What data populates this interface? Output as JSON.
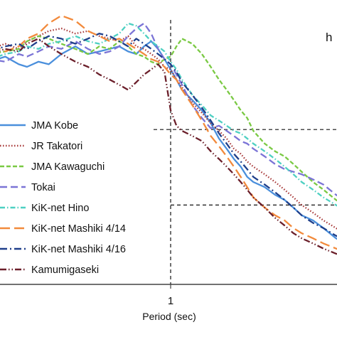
{
  "chart_data": {
    "type": "line",
    "title": "",
    "panel_label": "h",
    "xlabel": "Period (sec)",
    "ylabel": "",
    "x_scale": "log",
    "xlim": [
      0.2,
      5
    ],
    "ylim": [
      0,
      1
    ],
    "x_ticks": [
      {
        "value": 1,
        "label": "1"
      }
    ],
    "reference_lines": [
      {
        "kind": "vertical",
        "x": 1
      },
      {
        "kind": "horizontal",
        "y": 0.605,
        "x_from": 0.2,
        "x_to": 5
      },
      {
        "kind": "horizontal",
        "y": 0.31,
        "x_from": 1,
        "x_to": 5
      }
    ],
    "legend": {
      "placement": "left"
    },
    "series": [
      {
        "name": "JMA Kobe",
        "color": "#4a8fdc",
        "dash": "solid",
        "x": [
          0.2,
          0.22,
          0.25,
          0.28,
          0.3,
          0.33,
          0.36,
          0.4,
          0.45,
          0.5,
          0.55,
          0.6,
          0.65,
          0.7,
          0.75,
          0.8,
          0.85,
          0.9,
          0.95,
          1.0,
          1.05,
          1.1,
          1.2,
          1.3,
          1.4,
          1.5,
          1.6,
          1.7,
          1.8,
          1.9,
          2.0,
          2.2,
          2.4,
          2.6,
          2.8,
          3.0,
          3.3,
          3.6,
          4.0,
          4.5,
          5.0
        ],
        "y": [
          0.88,
          0.87,
          0.89,
          0.86,
          0.85,
          0.87,
          0.86,
          0.9,
          0.93,
          0.9,
          0.91,
          0.92,
          0.93,
          0.91,
          0.9,
          0.93,
          0.95,
          0.92,
          0.88,
          0.84,
          0.8,
          0.76,
          0.72,
          0.68,
          0.63,
          0.57,
          0.53,
          0.49,
          0.46,
          0.42,
          0.4,
          0.38,
          0.35,
          0.33,
          0.3,
          0.27,
          0.25,
          0.22,
          0.18,
          0.15,
          0.13
        ]
      },
      {
        "name": "JR Takatori",
        "color": "#a83a3a",
        "dash": "dot",
        "x": [
          0.2,
          0.22,
          0.25,
          0.28,
          0.3,
          0.33,
          0.36,
          0.4,
          0.45,
          0.5,
          0.55,
          0.6,
          0.65,
          0.7,
          0.75,
          0.8,
          0.85,
          0.9,
          0.95,
          1.0,
          1.05,
          1.1,
          1.2,
          1.3,
          1.4,
          1.5,
          1.6,
          1.7,
          1.8,
          1.9,
          2.0,
          2.2,
          2.4,
          2.6,
          2.8,
          3.0,
          3.3,
          3.6,
          4.0,
          4.5,
          5.0
        ],
        "y": [
          0.9,
          0.92,
          0.94,
          0.92,
          0.95,
          0.97,
          0.99,
          1.0,
          0.98,
          0.99,
          0.97,
          0.96,
          0.95,
          0.97,
          0.93,
          0.92,
          0.9,
          0.88,
          0.85,
          0.84,
          0.8,
          0.77,
          0.71,
          0.67,
          0.63,
          0.6,
          0.57,
          0.53,
          0.51,
          0.48,
          0.46,
          0.43,
          0.4,
          0.37,
          0.34,
          0.31,
          0.28,
          0.25,
          0.22,
          0.18,
          0.15
        ]
      },
      {
        "name": "JMA Kawaguchi",
        "color": "#7ac943",
        "dash": "dash",
        "x": [
          0.2,
          0.22,
          0.25,
          0.28,
          0.3,
          0.33,
          0.36,
          0.4,
          0.45,
          0.5,
          0.55,
          0.6,
          0.65,
          0.7,
          0.75,
          0.8,
          0.85,
          0.9,
          0.95,
          1.0,
          1.05,
          1.1,
          1.2,
          1.3,
          1.4,
          1.5,
          1.6,
          1.7,
          1.8,
          1.9,
          2.0,
          2.2,
          2.4,
          2.6,
          2.8,
          3.0,
          3.3,
          3.6,
          4.0,
          4.5,
          5.0
        ],
        "y": [
          0.88,
          0.9,
          0.91,
          0.92,
          0.95,
          0.97,
          0.96,
          0.94,
          0.92,
          0.9,
          0.93,
          0.92,
          0.95,
          0.93,
          0.9,
          0.89,
          0.87,
          0.86,
          0.88,
          0.89,
          0.93,
          0.96,
          0.94,
          0.9,
          0.85,
          0.8,
          0.76,
          0.72,
          0.68,
          0.65,
          0.6,
          0.55,
          0.52,
          0.5,
          0.47,
          0.44,
          0.4,
          0.37,
          0.33,
          0.3,
          0.26
        ]
      },
      {
        "name": "Tokai",
        "color": "#7b74d6",
        "dash": "longdash",
        "x": [
          0.2,
          0.22,
          0.25,
          0.28,
          0.3,
          0.33,
          0.36,
          0.4,
          0.45,
          0.5,
          0.55,
          0.6,
          0.65,
          0.7,
          0.75,
          0.8,
          0.85,
          0.9,
          0.95,
          1.0,
          1.05,
          1.1,
          1.2,
          1.3,
          1.4,
          1.5,
          1.6,
          1.7,
          1.8,
          1.9,
          2.0,
          2.2,
          2.4,
          2.6,
          2.8,
          3.0,
          3.3,
          3.6,
          4.0,
          4.5,
          5.0
        ],
        "y": [
          0.85,
          0.88,
          0.87,
          0.9,
          0.89,
          0.91,
          0.93,
          0.92,
          0.95,
          0.92,
          0.9,
          0.91,
          0.93,
          0.97,
          1.0,
          1.02,
          0.98,
          0.92,
          0.88,
          0.86,
          0.82,
          0.78,
          0.7,
          0.65,
          0.61,
          0.62,
          0.6,
          0.58,
          0.56,
          0.55,
          0.53,
          0.5,
          0.47,
          0.45,
          0.44,
          0.43,
          0.41,
          0.39,
          0.35,
          0.32,
          0.29
        ]
      },
      {
        "name": "KiK-net Hino",
        "color": "#4dd0c2",
        "dash": "dashdot",
        "x": [
          0.2,
          0.22,
          0.25,
          0.28,
          0.3,
          0.33,
          0.36,
          0.4,
          0.45,
          0.5,
          0.55,
          0.6,
          0.65,
          0.7,
          0.75,
          0.8,
          0.85,
          0.9,
          0.95,
          1.0,
          1.05,
          1.1,
          1.2,
          1.3,
          1.4,
          1.5,
          1.6,
          1.7,
          1.8,
          1.9,
          2.0,
          2.2,
          2.4,
          2.6,
          2.8,
          3.0,
          3.3,
          3.6,
          4.0,
          4.5,
          5.0
        ],
        "y": [
          0.86,
          0.88,
          0.9,
          0.91,
          0.93,
          0.92,
          0.94,
          0.95,
          0.97,
          0.95,
          0.94,
          0.96,
          0.98,
          1.02,
          1.01,
          0.98,
          0.95,
          0.93,
          0.91,
          0.87,
          0.84,
          0.8,
          0.74,
          0.7,
          0.66,
          0.64,
          0.62,
          0.6,
          0.59,
          0.57,
          0.55,
          0.52,
          0.49,
          0.46,
          0.43,
          0.4,
          0.37,
          0.34,
          0.31,
          0.28,
          0.24
        ]
      },
      {
        "name": "KiK-net Mashiki 4/14",
        "color": "#f28a3c",
        "dash": "bigdash",
        "x": [
          0.2,
          0.22,
          0.25,
          0.28,
          0.3,
          0.33,
          0.36,
          0.4,
          0.45,
          0.5,
          0.55,
          0.6,
          0.65,
          0.7,
          0.75,
          0.8,
          0.85,
          0.9,
          0.95,
          1.0,
          1.05,
          1.1,
          1.2,
          1.3,
          1.4,
          1.5,
          1.6,
          1.7,
          1.8,
          1.9,
          2.0,
          2.2,
          2.4,
          2.6,
          2.8,
          3.0,
          3.3,
          3.6,
          4.0,
          4.5,
          5.0
        ],
        "y": [
          0.92,
          0.94,
          0.91,
          0.93,
          0.96,
          0.98,
          1.02,
          1.05,
          1.03,
          0.99,
          0.97,
          0.95,
          0.96,
          0.94,
          0.92,
          0.9,
          0.88,
          0.87,
          0.85,
          0.82,
          0.8,
          0.76,
          0.7,
          0.64,
          0.58,
          0.54,
          0.5,
          0.46,
          0.42,
          0.38,
          0.34,
          0.3,
          0.27,
          0.25,
          0.22,
          0.2,
          0.18,
          0.16,
          0.14,
          0.12,
          0.11
        ]
      },
      {
        "name": "KiK-net Mashiki 4/16",
        "color": "#1f3f8a",
        "dash": "dashdot2",
        "x": [
          0.2,
          0.22,
          0.25,
          0.28,
          0.3,
          0.33,
          0.36,
          0.4,
          0.45,
          0.5,
          0.55,
          0.6,
          0.65,
          0.7,
          0.75,
          0.8,
          0.85,
          0.9,
          0.95,
          1.0,
          1.05,
          1.1,
          1.2,
          1.3,
          1.4,
          1.5,
          1.6,
          1.7,
          1.8,
          1.9,
          2.0,
          2.2,
          2.4,
          2.6,
          2.8,
          3.0,
          3.3,
          3.6,
          4.0,
          4.5,
          5.0
        ],
        "y": [
          0.89,
          0.91,
          0.93,
          0.94,
          0.92,
          0.95,
          0.97,
          0.96,
          0.94,
          0.96,
          0.98,
          0.97,
          0.95,
          0.93,
          0.96,
          0.94,
          0.92,
          0.9,
          0.88,
          0.86,
          0.83,
          0.79,
          0.74,
          0.69,
          0.64,
          0.59,
          0.55,
          0.51,
          0.48,
          0.45,
          0.42,
          0.39,
          0.36,
          0.33,
          0.3,
          0.27,
          0.24,
          0.22,
          0.19,
          0.17,
          0.15
        ]
      },
      {
        "name": "Kamumigaseki",
        "color": "#6b1f2a",
        "dash": "dashdotdot",
        "x": [
          0.2,
          0.22,
          0.25,
          0.28,
          0.3,
          0.33,
          0.36,
          0.4,
          0.45,
          0.5,
          0.55,
          0.6,
          0.65,
          0.7,
          0.75,
          0.8,
          0.85,
          0.9,
          0.95,
          1.0,
          1.05,
          1.1,
          1.2,
          1.3,
          1.4,
          1.5,
          1.6,
          1.7,
          1.8,
          1.9,
          2.0,
          2.2,
          2.4,
          2.6,
          2.8,
          3.0,
          3.3,
          3.6,
          4.0,
          4.5,
          5.0
        ],
        "y": [
          0.87,
          0.9,
          0.92,
          0.91,
          0.94,
          0.96,
          0.93,
          0.9,
          0.87,
          0.85,
          0.82,
          0.8,
          0.78,
          0.76,
          0.79,
          0.82,
          0.84,
          0.86,
          0.83,
          0.68,
          0.62,
          0.6,
          0.58,
          0.56,
          0.52,
          0.49,
          0.46,
          0.43,
          0.4,
          0.37,
          0.34,
          0.3,
          0.26,
          0.23,
          0.2,
          0.18,
          0.16,
          0.14,
          0.12,
          0.1,
          0.09
        ]
      }
    ]
  }
}
